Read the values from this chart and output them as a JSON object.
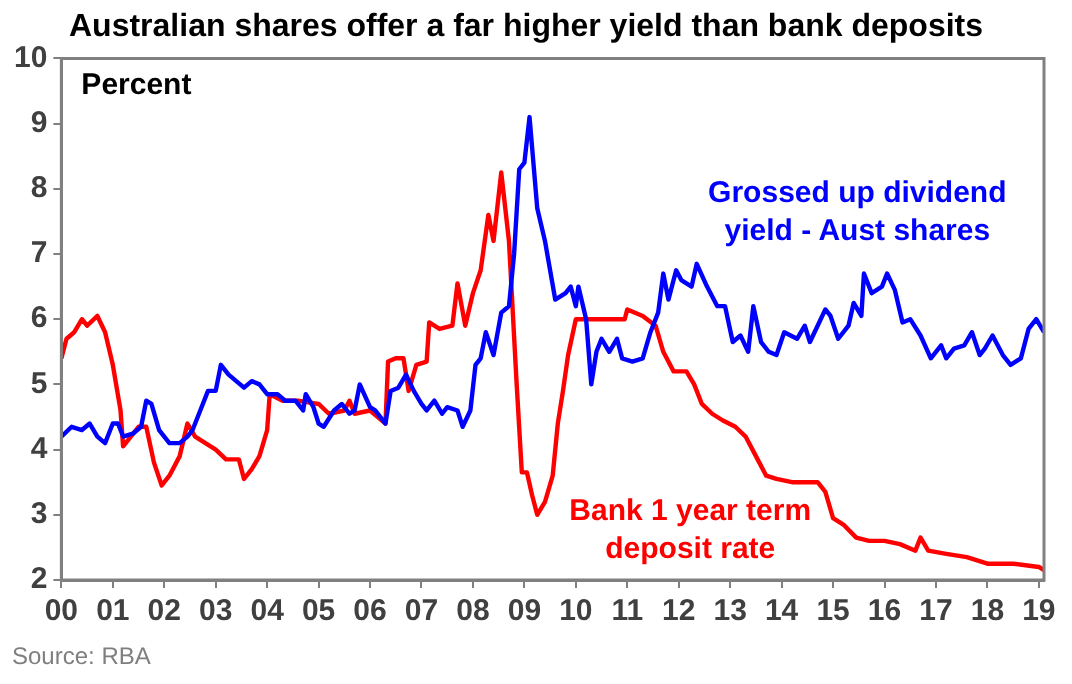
{
  "chart_data": {
    "type": "line",
    "title": "Australian shares offer a far higher yield than bank deposits",
    "ylabel": "Percent",
    "annotations": [
      "Source: RBA"
    ],
    "xlim": [
      2000,
      2019.1
    ],
    "xticks": [
      {
        "value": 2000,
        "label": "00"
      },
      {
        "value": 2001,
        "label": "01"
      },
      {
        "value": 2002,
        "label": "02"
      },
      {
        "value": 2003,
        "label": "03"
      },
      {
        "value": 2004,
        "label": "04"
      },
      {
        "value": 2005,
        "label": "05"
      },
      {
        "value": 2006,
        "label": "06"
      },
      {
        "value": 2007,
        "label": "07"
      },
      {
        "value": 2008,
        "label": "08"
      },
      {
        "value": 2009,
        "label": "09"
      },
      {
        "value": 2010,
        "label": "10"
      },
      {
        "value": 2011,
        "label": "11"
      },
      {
        "value": 2012,
        "label": "12"
      },
      {
        "value": 2013,
        "label": "13"
      },
      {
        "value": 2014,
        "label": "14"
      },
      {
        "value": 2015,
        "label": "15"
      },
      {
        "value": 2016,
        "label": "16"
      },
      {
        "value": 2017,
        "label": "17"
      },
      {
        "value": 2018,
        "label": "18"
      },
      {
        "value": 2019,
        "label": "19"
      }
    ],
    "ylim": [
      2,
      10
    ],
    "yticks": [
      2,
      3,
      4,
      5,
      6,
      7,
      8,
      9,
      10
    ],
    "grid": false,
    "legend": false,
    "marker": "none",
    "line_style": "solid",
    "series": [
      {
        "name": "Grossed up dividend yield - Aust shares",
        "color": "#0000ff",
        "x": [
          2000.0,
          2000.2,
          2000.4,
          2000.55,
          2000.7,
          2000.85,
          2000.9,
          2001.0,
          2001.1,
          2001.2,
          2001.4,
          2001.55,
          2001.65,
          2001.75,
          2001.9,
          2002.1,
          2002.3,
          2002.45,
          2002.55,
          2002.7,
          2002.85,
          2003.0,
          2003.1,
          2003.25,
          2003.4,
          2003.55,
          2003.7,
          2003.85,
          2004.0,
          2004.2,
          2004.35,
          2004.55,
          2004.7,
          2004.75,
          2004.9,
          2005.0,
          2005.1,
          2005.3,
          2005.45,
          2005.6,
          2005.7,
          2005.8,
          2006.0,
          2006.1,
          2006.3,
          2006.4,
          2006.55,
          2006.7,
          2006.85,
          2007.0,
          2007.1,
          2007.25,
          2007.4,
          2007.5,
          2007.7,
          2007.8,
          2007.95,
          2008.05,
          2008.15,
          2008.25,
          2008.4,
          2008.55,
          2008.7,
          2008.8,
          2008.9,
          2009.0,
          2009.1,
          2009.25,
          2009.4,
          2009.6,
          2009.8,
          2009.9,
          2010.0,
          2010.05,
          2010.2,
          2010.3,
          2010.4,
          2010.5,
          2010.65,
          2010.8,
          2010.9,
          2011.1,
          2011.3,
          2011.45,
          2011.6,
          2011.7,
          2011.8,
          2011.95,
          2012.05,
          2012.25,
          2012.35,
          2012.55,
          2012.75,
          2012.9,
          2013.05,
          2013.2,
          2013.35,
          2013.45,
          2013.6,
          2013.75,
          2013.9,
          2014.05,
          2014.3,
          2014.45,
          2014.55,
          2014.7,
          2014.85,
          2014.95,
          2015.1,
          2015.3,
          2015.4,
          2015.55,
          2015.6,
          2015.75,
          2015.95,
          2016.05,
          2016.2,
          2016.35,
          2016.5,
          2016.7,
          2016.9,
          2017.1,
          2017.2,
          2017.35,
          2017.55,
          2017.7,
          2017.85,
          2017.95,
          2018.1,
          2018.3,
          2018.45,
          2018.65,
          2018.8,
          2018.95,
          2019.1
        ],
        "values": [
          4.2,
          4.35,
          4.3,
          4.4,
          4.2,
          4.1,
          4.2,
          4.4,
          4.4,
          4.2,
          4.25,
          4.35,
          4.75,
          4.7,
          4.3,
          4.1,
          4.1,
          4.2,
          4.3,
          4.6,
          4.9,
          4.9,
          5.3,
          5.15,
          5.05,
          4.95,
          5.05,
          5.0,
          4.85,
          4.85,
          4.75,
          4.75,
          4.6,
          4.85,
          4.65,
          4.4,
          4.35,
          4.6,
          4.7,
          4.55,
          4.6,
          5.0,
          4.65,
          4.6,
          4.4,
          4.9,
          4.95,
          5.15,
          4.9,
          4.7,
          4.6,
          4.75,
          4.55,
          4.65,
          4.6,
          4.35,
          4.6,
          5.3,
          5.4,
          5.8,
          5.45,
          6.1,
          6.2,
          7.0,
          8.3,
          8.4,
          9.1,
          7.7,
          7.2,
          6.3,
          6.4,
          6.5,
          6.2,
          6.5,
          6.0,
          5.0,
          5.5,
          5.7,
          5.5,
          5.7,
          5.4,
          5.35,
          5.4,
          5.8,
          6.1,
          6.7,
          6.3,
          6.75,
          6.6,
          6.5,
          6.85,
          6.5,
          6.2,
          6.2,
          5.65,
          5.75,
          5.5,
          6.2,
          5.65,
          5.5,
          5.45,
          5.8,
          5.7,
          5.9,
          5.65,
          5.9,
          6.15,
          6.05,
          5.7,
          5.9,
          6.25,
          6.05,
          6.7,
          6.4,
          6.5,
          6.7,
          6.45,
          5.95,
          6.0,
          5.75,
          5.4,
          5.6,
          5.4,
          5.55,
          5.6,
          5.8,
          5.45,
          5.55,
          5.75,
          5.45,
          5.3,
          5.4,
          5.85,
          6.0,
          5.8
        ]
      },
      {
        "name": "Bank 1 year term deposit rate",
        "color": "#ff0000",
        "x": [
          2000.0,
          2000.1,
          2000.25,
          2000.4,
          2000.5,
          2000.7,
          2000.85,
          2001.0,
          2001.15,
          2001.2,
          2001.35,
          2001.5,
          2001.65,
          2001.8,
          2001.95,
          2002.1,
          2002.3,
          2002.45,
          2002.6,
          2002.8,
          2003.0,
          2003.2,
          2003.45,
          2003.55,
          2003.7,
          2003.85,
          2004.0,
          2004.05,
          2004.3,
          2004.6,
          2005.0,
          2005.2,
          2005.5,
          2005.6,
          2005.7,
          2006.0,
          2006.3,
          2006.35,
          2006.5,
          2006.65,
          2006.75,
          2006.9,
          2007.1,
          2007.15,
          2007.35,
          2007.6,
          2007.7,
          2007.85,
          2008.0,
          2008.15,
          2008.3,
          2008.4,
          2008.55,
          2008.7,
          2008.85,
          2008.95,
          2009.05,
          2009.15,
          2009.25,
          2009.4,
          2009.55,
          2009.65,
          2009.75,
          2009.85,
          2010.0,
          2010.5,
          2010.95,
          2011.0,
          2011.3,
          2011.55,
          2011.7,
          2011.9,
          2012.15,
          2012.3,
          2012.45,
          2012.65,
          2012.85,
          2013.1,
          2013.3,
          2013.5,
          2013.7,
          2013.9,
          2014.2,
          2014.7,
          2014.85,
          2015.0,
          2015.2,
          2015.45,
          2015.7,
          2016.0,
          2016.3,
          2016.6,
          2016.7,
          2016.85,
          2017.2,
          2017.6,
          2018.0,
          2018.5,
          2019.0,
          2019.1
        ],
        "values": [
          5.4,
          5.7,
          5.8,
          6.0,
          5.9,
          6.05,
          5.8,
          5.3,
          4.6,
          4.05,
          4.2,
          4.35,
          4.35,
          3.8,
          3.45,
          3.6,
          3.9,
          4.4,
          4.2,
          4.1,
          4.0,
          3.85,
          3.85,
          3.55,
          3.7,
          3.9,
          4.3,
          4.85,
          4.75,
          4.75,
          4.7,
          4.55,
          4.6,
          4.75,
          4.55,
          4.6,
          4.4,
          5.35,
          5.4,
          5.4,
          4.9,
          5.3,
          5.35,
          5.95,
          5.85,
          5.9,
          6.55,
          5.9,
          6.4,
          6.75,
          7.6,
          7.2,
          8.25,
          7.2,
          5.0,
          3.65,
          3.65,
          3.3,
          3.0,
          3.2,
          3.6,
          4.4,
          4.9,
          5.45,
          6.0,
          6.0,
          6.0,
          6.15,
          6.05,
          5.9,
          5.5,
          5.2,
          5.2,
          5.0,
          4.7,
          4.55,
          4.45,
          4.35,
          4.2,
          3.9,
          3.6,
          3.55,
          3.5,
          3.5,
          3.35,
          2.95,
          2.85,
          2.65,
          2.6,
          2.6,
          2.55,
          2.45,
          2.65,
          2.45,
          2.4,
          2.35,
          2.25,
          2.25,
          2.2,
          2.15
        ]
      }
    ]
  }
}
